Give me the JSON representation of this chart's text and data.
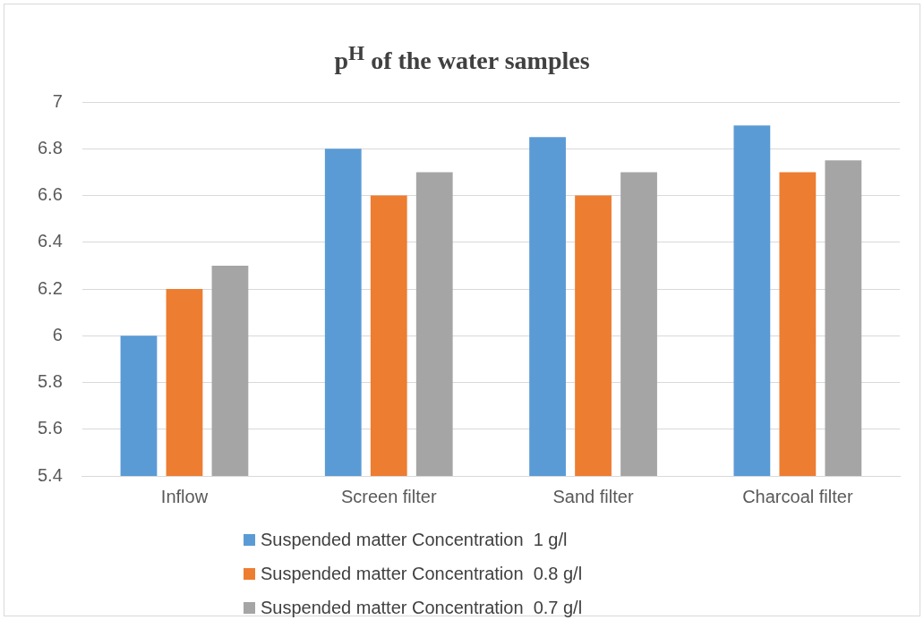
{
  "chart_data": {
    "type": "bar",
    "title": "p$^{H}$ of the water samples",
    "categories": [
      "Inflow",
      "Screen filter",
      "Sand filter",
      "Charcoal filter"
    ],
    "series": [
      {
        "name": "Suspended matter Concentration  1 g/l",
        "color": "#5b9bd5",
        "values": [
          6.0,
          6.8,
          6.85,
          6.9
        ]
      },
      {
        "name": "Suspended matter Concentration  0.8 g/l",
        "color": "#ed7d31",
        "values": [
          6.2,
          6.6,
          6.6,
          6.7
        ]
      },
      {
        "name": "Suspended matter Concentration  0.7 g/l",
        "color": "#a5a5a5",
        "values": [
          6.3,
          6.7,
          6.7,
          6.75
        ]
      }
    ],
    "ylim": [
      5.4,
      7
    ],
    "yticks": [
      5.4,
      5.6,
      5.8,
      6,
      6.2,
      6.4,
      6.6,
      6.8,
      7
    ],
    "grid": "y",
    "legend": "bottom"
  }
}
